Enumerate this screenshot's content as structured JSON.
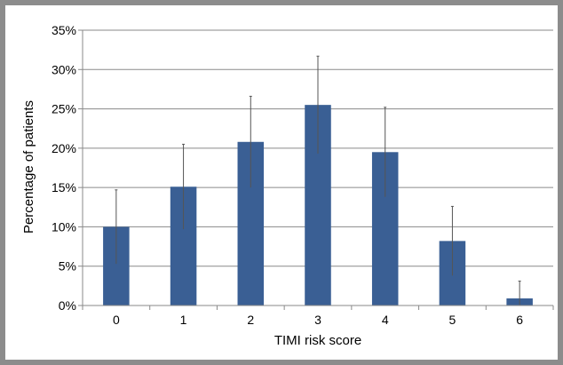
{
  "chart_data": {
    "type": "bar",
    "title": "",
    "xlabel": "TIMI risk score",
    "ylabel": "Percentage of patients",
    "categories": [
      "0",
      "1",
      "2",
      "3",
      "4",
      "5",
      "6"
    ],
    "values": [
      10.0,
      15.1,
      20.8,
      25.5,
      19.5,
      8.2,
      0.9
    ],
    "error_upper": [
      4.7,
      5.4,
      5.8,
      6.2,
      5.7,
      4.4,
      2.2
    ],
    "ylim": [
      0,
      35
    ],
    "yticks": [
      0,
      5,
      10,
      15,
      20,
      25,
      30,
      35
    ],
    "ytick_labels": [
      "0%",
      "5%",
      "10%",
      "15%",
      "20%",
      "25%",
      "30%",
      "35%"
    ],
    "grid": true,
    "bar_color": "#3a5f94",
    "legend": "none"
  }
}
